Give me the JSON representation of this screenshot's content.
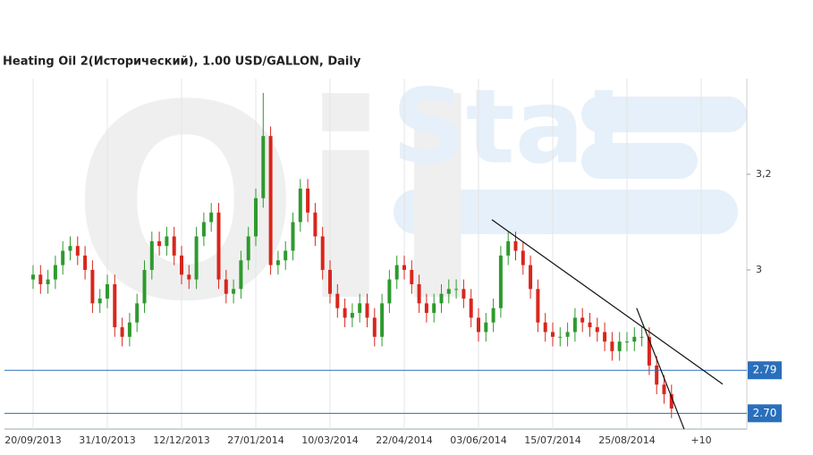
{
  "chart_data": {
    "type": "candlestick",
    "title": "Heating Oil 2(Исторический), 1.00 USD/GALLON, Daily",
    "watermark": [
      "Oil",
      "Stat"
    ],
    "categories": [
      "20/09/2013",
      null,
      null,
      null,
      null,
      null,
      null,
      null,
      null,
      null,
      "31/10/2013",
      null,
      null,
      null,
      null,
      null,
      null,
      null,
      null,
      null,
      "12/12/2013",
      null,
      null,
      null,
      null,
      null,
      null,
      null,
      null,
      null,
      "27/01/2014",
      null,
      null,
      null,
      null,
      null,
      null,
      null,
      null,
      null,
      "10/03/2014",
      null,
      null,
      null,
      null,
      null,
      null,
      null,
      null,
      null,
      "22/04/2014",
      null,
      null,
      null,
      null,
      null,
      null,
      null,
      null,
      null,
      "03/06/2014",
      null,
      null,
      null,
      null,
      null,
      null,
      null,
      null,
      null,
      "15/07/2014",
      null,
      null,
      null,
      null,
      null,
      null,
      null,
      null,
      null,
      "25/08/2014",
      null,
      null,
      null,
      null,
      null,
      null,
      null,
      null,
      null,
      "+10"
    ],
    "open": [
      2.98,
      2.99,
      2.97,
      2.98,
      3.01,
      3.04,
      3.05,
      3.03,
      3.0,
      2.93,
      2.94,
      2.97,
      2.88,
      2.86,
      2.89,
      2.93,
      3.0,
      3.06,
      3.05,
      3.07,
      3.03,
      2.99,
      2.98,
      3.07,
      3.1,
      3.12,
      2.98,
      2.95,
      2.96,
      3.02,
      3.07,
      3.15,
      3.28,
      3.01,
      3.02,
      3.04,
      3.1,
      3.17,
      3.12,
      3.07,
      3.0,
      2.95,
      2.92,
      2.9,
      2.91,
      2.93,
      2.9,
      2.86,
      2.93,
      2.98,
      3.01,
      3.0,
      2.97,
      2.93,
      2.91,
      2.93,
      2.95,
      2.96,
      2.96,
      2.94,
      2.9,
      2.87,
      2.89,
      2.92,
      3.03,
      3.06,
      3.04,
      3.01,
      2.96,
      2.89,
      2.87,
      2.86,
      2.86,
      2.87,
      2.9,
      2.89,
      2.88,
      2.87,
      2.85,
      2.83,
      2.85,
      2.85,
      2.86,
      2.86,
      2.8,
      2.76,
      2.74,
      null,
      null,
      null,
      null
    ],
    "high": [
      3.01,
      3.01,
      3.0,
      3.03,
      3.06,
      3.07,
      3.07,
      3.05,
      3.02,
      2.96,
      2.99,
      2.99,
      2.9,
      2.91,
      2.95,
      3.02,
      3.08,
      3.08,
      3.09,
      3.09,
      3.05,
      3.01,
      3.09,
      3.12,
      3.14,
      3.14,
      3.0,
      2.98,
      3.04,
      3.09,
      3.17,
      3.37,
      3.3,
      3.04,
      3.06,
      3.12,
      3.19,
      3.19,
      3.14,
      3.09,
      3.02,
      2.97,
      2.94,
      2.93,
      2.95,
      2.95,
      2.92,
      2.95,
      3.0,
      3.03,
      3.03,
      3.02,
      2.99,
      2.95,
      2.95,
      2.97,
      2.98,
      2.98,
      2.98,
      2.96,
      2.92,
      2.91,
      2.94,
      3.05,
      3.08,
      3.08,
      3.06,
      3.03,
      2.98,
      2.91,
      2.89,
      2.88,
      2.89,
      2.92,
      2.92,
      2.91,
      2.9,
      2.89,
      2.87,
      2.87,
      2.87,
      2.88,
      2.88,
      2.88,
      2.82,
      2.78,
      2.76,
      null,
      null,
      null,
      null
    ],
    "low": [
      2.96,
      2.95,
      2.95,
      2.96,
      2.99,
      3.02,
      3.01,
      2.98,
      2.91,
      2.91,
      2.92,
      2.86,
      2.84,
      2.84,
      2.87,
      2.91,
      2.98,
      3.03,
      3.03,
      3.01,
      2.97,
      2.96,
      2.96,
      3.05,
      3.08,
      2.96,
      2.93,
      2.93,
      2.94,
      3.0,
      3.05,
      3.13,
      2.99,
      2.99,
      3.0,
      3.02,
      3.08,
      3.1,
      3.05,
      2.98,
      2.93,
      2.9,
      2.88,
      2.88,
      2.89,
      2.88,
      2.84,
      2.84,
      2.91,
      2.96,
      2.98,
      2.95,
      2.91,
      2.89,
      2.89,
      2.91,
      2.93,
      2.94,
      2.92,
      2.88,
      2.85,
      2.85,
      2.87,
      2.9,
      3.01,
      3.02,
      2.99,
      2.94,
      2.87,
      2.85,
      2.84,
      2.84,
      2.84,
      2.85,
      2.87,
      2.86,
      2.85,
      2.83,
      2.81,
      2.81,
      2.83,
      2.83,
      2.84,
      2.78,
      2.74,
      2.72,
      2.69,
      null,
      null,
      null,
      null
    ],
    "close": [
      2.99,
      2.97,
      2.98,
      3.01,
      3.04,
      3.05,
      3.03,
      3.0,
      2.93,
      2.94,
      2.97,
      2.88,
      2.86,
      2.89,
      2.93,
      3.0,
      3.06,
      3.05,
      3.07,
      3.03,
      2.99,
      2.98,
      3.07,
      3.1,
      3.12,
      2.98,
      2.95,
      2.96,
      3.02,
      3.07,
      3.15,
      3.28,
      3.01,
      3.02,
      3.04,
      3.1,
      3.17,
      3.12,
      3.07,
      3.0,
      2.95,
      2.92,
      2.9,
      2.91,
      2.93,
      2.9,
      2.86,
      2.93,
      2.98,
      3.01,
      3.0,
      2.97,
      2.93,
      2.91,
      2.93,
      2.95,
      2.96,
      2.96,
      2.94,
      2.9,
      2.87,
      2.89,
      2.92,
      3.03,
      3.06,
      3.04,
      3.01,
      2.96,
      2.89,
      2.87,
      2.86,
      2.86,
      2.87,
      2.9,
      2.89,
      2.88,
      2.87,
      2.85,
      2.83,
      2.85,
      2.85,
      2.86,
      2.86,
      2.8,
      2.76,
      2.74,
      2.71,
      null,
      null,
      null,
      null
    ],
    "up_color": "#2e9a2e",
    "down_color": "#d8261c",
    "ylim": [
      2.667,
      3.4
    ],
    "yticks": [
      3,
      {
        "value": 3.2,
        "label": "3,2"
      }
    ],
    "grid": true,
    "hlines": [
      {
        "value": 2.79,
        "label": "2.79"
      },
      {
        "value": 2.7,
        "label": "2.70"
      }
    ],
    "hline_color": "#2a6fbb",
    "trendlines": [
      {
        "x": [
          61.8,
          92.9
        ],
        "y": [
          3.105,
          2.761
        ]
      },
      {
        "x": [
          81.3,
          87.7
        ],
        "y": [
          2.92,
          2.667
        ]
      }
    ]
  }
}
